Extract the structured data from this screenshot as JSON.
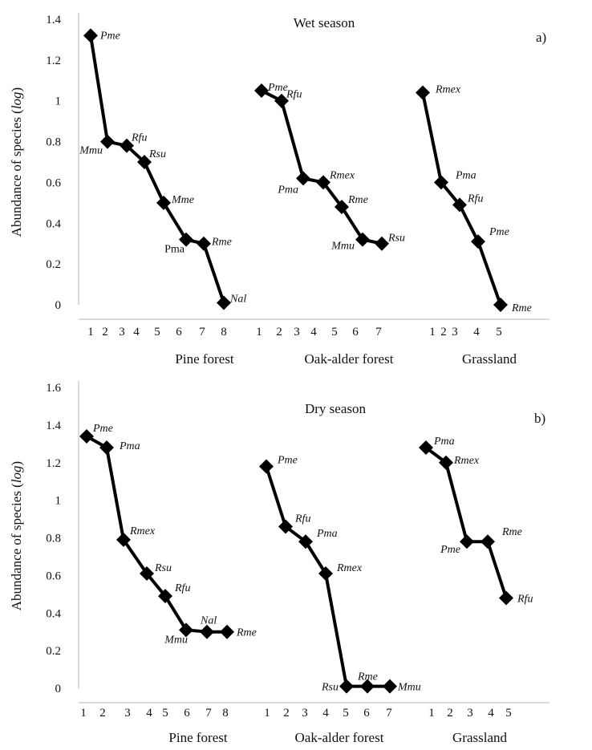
{
  "chart_data": [
    {
      "type": "line",
      "title": "Wet season",
      "panel_label": "a)",
      "ylabel": "Abundance of species (log)",
      "ylim": [
        0,
        1.4
      ],
      "yticks": [
        0,
        0.2,
        0.4,
        0.6,
        0.8,
        1,
        1.2,
        1.4
      ],
      "ytick_labels": [
        "0",
        "0.2",
        "0.4",
        "0.6",
        "0.8",
        "1",
        "1.2",
        "1.4"
      ],
      "groups": [
        {
          "name": "Pine forest",
          "x": [
            1,
            2,
            3,
            4,
            5,
            6,
            7,
            8
          ],
          "values": [
            1.32,
            0.8,
            0.78,
            0.7,
            0.5,
            0.32,
            0.3,
            0.01
          ],
          "labels": [
            "Pme",
            "Mmu",
            "Rfu",
            "Rsu",
            "Mme",
            "Pma",
            "Rme",
            "Nal"
          ]
        },
        {
          "name": "Oak-alder forest",
          "x": [
            1,
            2,
            3,
            4,
            5,
            6,
            7
          ],
          "values": [
            1.05,
            1.0,
            0.62,
            0.6,
            0.48,
            0.32,
            0.3
          ],
          "labels": [
            "Pme",
            "Rfu",
            "Pma",
            "Rmex",
            "Rme",
            "Mmu",
            "Rsu"
          ]
        },
        {
          "name": "Grassland",
          "x": [
            1,
            2,
            3,
            4,
            5
          ],
          "values": [
            1.04,
            0.6,
            0.49,
            0.31,
            0.0
          ],
          "labels": [
            "Rmex",
            "Pma",
            "Rfu",
            "Pme",
            "Rme"
          ]
        }
      ]
    },
    {
      "type": "line",
      "title": "Dry season",
      "panel_label": "b)",
      "ylabel": "Abundance of species (log)",
      "ylim": [
        0,
        1.6
      ],
      "yticks": [
        0,
        0.2,
        0.4,
        0.6,
        0.8,
        1,
        1.2,
        1.4,
        1.6
      ],
      "ytick_labels": [
        "0",
        "0.2",
        "0.4",
        "0.6",
        "0.8",
        "1",
        "1.2",
        "1.4",
        "1.6"
      ],
      "groups": [
        {
          "name": "Pine forest",
          "x": [
            1,
            2,
            3,
            4,
            5,
            6,
            7,
            8
          ],
          "values": [
            1.34,
            1.28,
            0.79,
            0.61,
            0.49,
            0.31,
            0.3,
            0.3
          ],
          "labels": [
            "Pme",
            "Pma",
            "Rmex",
            "Rsu",
            "Rfu",
            "Mmu",
            "Nal",
            "Rme"
          ]
        },
        {
          "name": "Oak-alder forest",
          "x": [
            1,
            2,
            3,
            4,
            5,
            6,
            7
          ],
          "values": [
            1.18,
            0.86,
            0.78,
            0.61,
            0.01,
            0.01,
            0.01
          ],
          "labels": [
            "Pme",
            "Rfu",
            "Pma",
            "Rmex",
            "Rsu",
            "Rme",
            "Mmu"
          ]
        },
        {
          "name": "Grassland",
          "x": [
            1,
            2,
            3,
            4,
            5
          ],
          "values": [
            1.28,
            1.2,
            0.78,
            0.78,
            0.48
          ],
          "labels": [
            "Pma",
            "Rmex",
            "Pme",
            "Rme",
            "Rfu"
          ]
        }
      ]
    }
  ]
}
